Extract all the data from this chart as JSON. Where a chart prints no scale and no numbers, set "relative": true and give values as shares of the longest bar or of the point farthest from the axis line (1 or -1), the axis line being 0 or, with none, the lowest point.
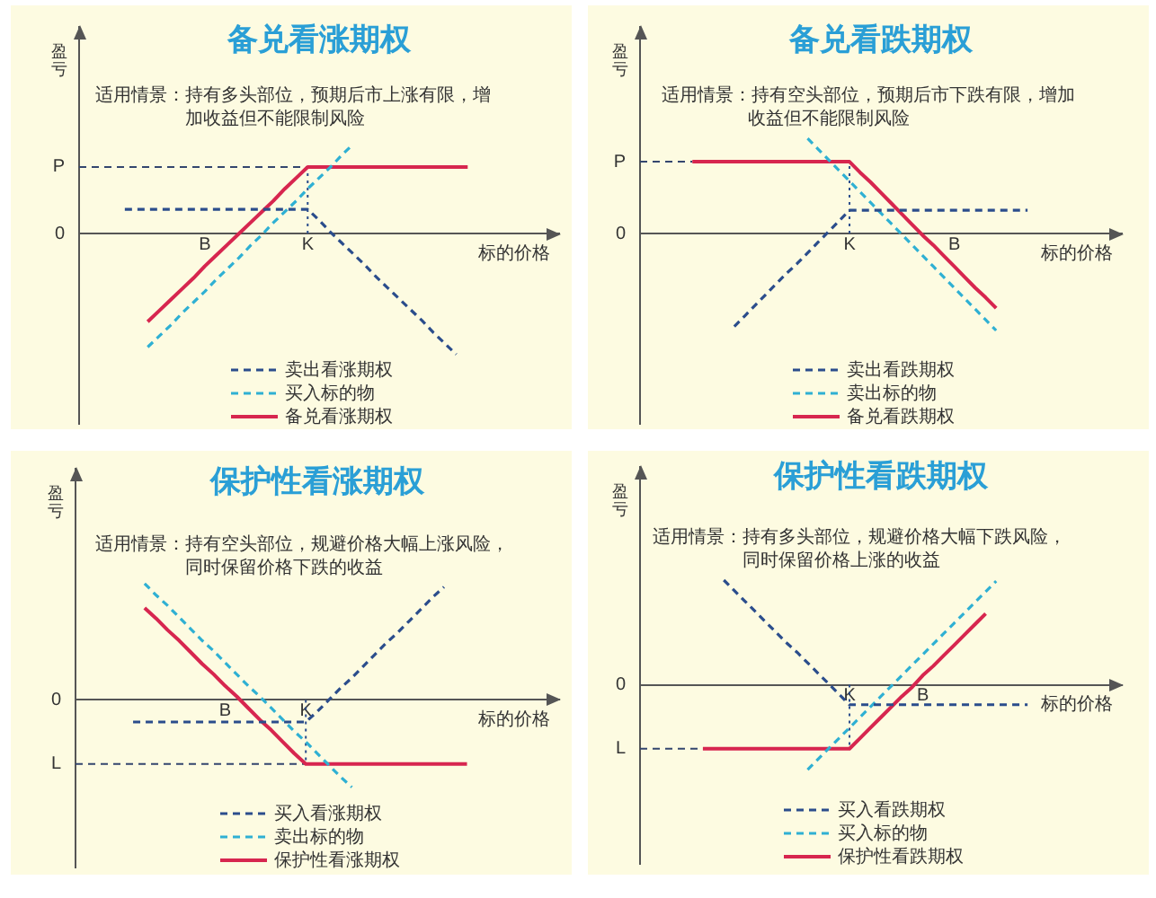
{
  "chart_data": [
    {
      "type": "line",
      "title": "备兑看涨期权",
      "subtitle": "适用情景：持有多头部位，预期后市上涨有限，增加收益但不能限制风险",
      "xlabel": "标的价格",
      "ylabel": "盈亏",
      "relative": true,
      "categories": [
        null,
        null,
        null,
        null,
        null,
        null,
        null,
        null,
        null,
        null,
        null,
        "B",
        null,
        null,
        null,
        null,
        null,
        null,
        null,
        null,
        "K",
        null,
        null,
        null,
        null,
        null,
        null,
        null,
        null,
        null,
        null,
        null,
        null,
        null,
        null,
        null,
        null,
        null,
        null,
        null,
        null,
        null,
        null
      ],
      "series": [
        {
          "name": "卖出看涨期权",
          "color": "#2b4d8c",
          "line_style": "dashed",
          "values": [
            null,
            null,
            null,
            null,
            0.2,
            0.2,
            0.2,
            0.2,
            0.2,
            0.2,
            0.2,
            0.2,
            0.2,
            0.2,
            0.2,
            0.2,
            0.2,
            0.2,
            0.2,
            0.2,
            0.2,
            0.11,
            0.01,
            -0.08,
            -0.17,
            -0.26,
            -0.36,
            -0.45,
            -0.54,
            -0.63,
            -0.72,
            -0.82,
            -0.91,
            -1,
            null,
            null,
            null,
            null,
            null,
            null,
            null,
            null,
            null
          ]
        },
        {
          "name": "买入标的物",
          "color": "#2fb0d3",
          "line_style": "dashed",
          "values": [
            null,
            null,
            null,
            null,
            null,
            null,
            -0.94,
            -0.85,
            -0.76,
            -0.66,
            -0.57,
            -0.48,
            -0.38,
            -0.29,
            -0.2,
            -0.1,
            -0.01,
            0.09,
            0.18,
            0.27,
            0.37,
            0.46,
            0.55,
            0.65,
            0.74,
            null,
            null,
            null,
            null,
            null,
            null,
            null,
            null,
            null,
            null,
            null,
            null,
            null,
            null,
            null,
            null,
            null,
            null
          ]
        },
        {
          "name": "备兑看涨期权",
          "color": "#d7264f",
          "line_style": "solid",
          "values": [
            null,
            null,
            null,
            null,
            null,
            null,
            -0.73,
            -0.64,
            -0.55,
            -0.46,
            -0.37,
            -0.27,
            -0.18,
            -0.09,
            0,
            0.09,
            0.18,
            0.27,
            0.37,
            0.46,
            0.55,
            0.55,
            0.55,
            0.55,
            0.55,
            0.55,
            0.55,
            0.55,
            0.55,
            0.55,
            0.55,
            0.55,
            0.55,
            0.55,
            0.55,
            null,
            null,
            null,
            null,
            null,
            null,
            null,
            null
          ]
        }
      ],
      "ref_lines": [
        {
          "axis": "y",
          "value": 0.55,
          "label": "P",
          "line_style": "dashed",
          "color": "#34466e"
        },
        {
          "axis": "x",
          "value": "K",
          "line_style": "dotted",
          "color": "#2b4d8c"
        }
      ],
      "annotations": [
        "0"
      ],
      "legend": "bottom",
      "marker": "none"
    },
    {
      "type": "line",
      "title": "备兑看跌期权",
      "subtitle": "适用情景：持有空头部位，预期后市下跌有限，增加收益但不能限制风险",
      "xlabel": "标的价格",
      "ylabel": "盈亏",
      "relative": true,
      "categories": [
        null,
        null,
        null,
        null,
        null,
        null,
        null,
        null,
        null,
        null,
        null,
        null,
        null,
        null,
        null,
        null,
        null,
        null,
        null,
        null,
        "K",
        null,
        null,
        null,
        null,
        null,
        null,
        null,
        null,
        null,
        "B",
        null,
        null,
        null,
        null,
        null,
        null,
        null,
        null,
        null,
        null,
        null,
        null,
        null,
        null,
        null,
        null
      ],
      "series": [
        {
          "name": "卖出看跌期权",
          "color": "#2b4d8c",
          "line_style": "dashed",
          "values": [
            null,
            null,
            null,
            null,
            null,
            null,
            null,
            null,
            null,
            -0.96,
            -0.85,
            -0.74,
            -0.63,
            -0.52,
            -0.41,
            -0.31,
            -0.2,
            -0.09,
            0.02,
            0.13,
            0.24,
            0.24,
            0.24,
            0.24,
            0.24,
            0.24,
            0.24,
            0.24,
            0.24,
            0.24,
            0.24,
            0.24,
            0.24,
            0.24,
            0.24,
            0.24,
            0.24,
            0.24,
            null,
            null,
            null,
            null,
            null,
            null,
            null,
            null,
            null
          ]
        },
        {
          "name": "卖出标的物",
          "color": "#2fb0d3",
          "line_style": "dashed",
          "values": [
            null,
            null,
            null,
            null,
            null,
            null,
            null,
            null,
            null,
            null,
            null,
            null,
            null,
            null,
            null,
            null,
            0.98,
            0.87,
            0.76,
            0.65,
            0.54,
            0.43,
            0.32,
            0.21,
            0.1,
            -0.01,
            -0.12,
            -0.23,
            -0.34,
            -0.45,
            -0.56,
            -0.67,
            -0.78,
            -0.89,
            -1,
            null,
            null,
            null,
            null,
            null,
            null,
            null,
            null,
            null,
            null,
            null,
            null
          ]
        },
        {
          "name": "备兑看跌期权",
          "color": "#d7264f",
          "line_style": "solid",
          "values": [
            null,
            null,
            null,
            null,
            null,
            0.74,
            0.74,
            0.74,
            0.74,
            0.74,
            0.74,
            0.74,
            0.74,
            0.74,
            0.74,
            0.74,
            0.74,
            0.74,
            0.74,
            0.74,
            0.74,
            0.63,
            0.53,
            0.42,
            0.31,
            0.2,
            0.09,
            -0.02,
            -0.12,
            -0.23,
            -0.34,
            -0.45,
            -0.56,
            -0.66,
            -0.77,
            null,
            null,
            null,
            null,
            null,
            null,
            null,
            null,
            null,
            null,
            null,
            null
          ]
        }
      ],
      "ref_lines": [
        {
          "axis": "y",
          "value": 0.74,
          "label": "P",
          "line_style": "dashed",
          "color": "#34466e"
        },
        {
          "axis": "x",
          "value": "K",
          "line_style": "dotted",
          "color": "#2b4d8c"
        }
      ],
      "annotations": [
        "0"
      ],
      "legend": "bottom",
      "marker": "none"
    },
    {
      "type": "line",
      "title": "保护性看涨期权",
      "subtitle": "适用情景：持有空头部位，规避价格大幅上涨风险，同时保留价格下跌的收益",
      "xlabel": "标的价格",
      "ylabel": "盈亏",
      "relative": true,
      "categories": [
        null,
        null,
        null,
        null,
        null,
        null,
        null,
        null,
        null,
        null,
        null,
        null,
        null,
        "B",
        null,
        null,
        null,
        null,
        null,
        null,
        "K",
        null,
        null,
        null,
        null,
        null,
        null,
        null,
        null,
        null,
        null,
        null,
        null,
        null,
        null,
        null,
        null,
        null,
        null,
        null,
        null,
        null,
        null
      ],
      "series": [
        {
          "name": "买入看涨期权",
          "color": "#2b4d8c",
          "line_style": "dashed",
          "values": [
            null,
            null,
            null,
            null,
            null,
            -0.19,
            -0.19,
            -0.19,
            -0.19,
            -0.19,
            -0.19,
            -0.19,
            -0.19,
            -0.19,
            -0.19,
            -0.19,
            -0.19,
            -0.19,
            -0.19,
            -0.19,
            -0.19,
            -0.1,
            0,
            0.1,
            0.19,
            0.29,
            0.39,
            0.49,
            0.58,
            0.68,
            0.78,
            0.88,
            0.97,
            null,
            null,
            null,
            null,
            null,
            null,
            null,
            null,
            null,
            null
          ]
        },
        {
          "name": "卖出标的物",
          "color": "#2fb0d3",
          "line_style": "dashed",
          "values": [
            null,
            null,
            null,
            null,
            null,
            null,
            1,
            0.9,
            0.81,
            0.71,
            0.61,
            0.51,
            0.42,
            0.32,
            0.22,
            0.12,
            0.03,
            -0.07,
            -0.17,
            -0.27,
            -0.36,
            -0.46,
            -0.56,
            -0.66,
            -0.75,
            null,
            null,
            null,
            null,
            null,
            null,
            null,
            null,
            null,
            null,
            null,
            null,
            null,
            null,
            null,
            null,
            null,
            null
          ]
        },
        {
          "name": "保护性看涨期权",
          "color": "#d7264f",
          "line_style": "solid",
          "values": [
            null,
            null,
            null,
            null,
            null,
            null,
            0.79,
            0.7,
            0.6,
            0.51,
            0.41,
            0.31,
            0.22,
            0.12,
            0.03,
            -0.07,
            -0.17,
            -0.26,
            -0.36,
            -0.46,
            -0.55,
            -0.55,
            -0.55,
            -0.55,
            -0.55,
            -0.55,
            -0.55,
            -0.55,
            -0.55,
            -0.55,
            -0.55,
            -0.55,
            -0.55,
            -0.55,
            -0.55,
            null,
            null,
            null,
            null,
            null,
            null,
            null,
            null
          ]
        }
      ],
      "ref_lines": [
        {
          "axis": "y",
          "value": -0.55,
          "label": "L",
          "line_style": "dashed",
          "color": "#34466e"
        },
        {
          "axis": "x",
          "value": "K",
          "line_style": "dotted",
          "color": "#2b4d8c"
        }
      ],
      "annotations": [
        "0"
      ],
      "legend": "bottom",
      "marker": "none"
    },
    {
      "type": "line",
      "title": "保护性看跌期权",
      "subtitle": "适用情景：持有多头部位，规避价格大幅下跌风险，同时保留价格上涨的收益",
      "xlabel": "标的价格",
      "ylabel": "盈亏",
      "relative": true,
      "categories": [
        null,
        null,
        null,
        null,
        null,
        null,
        null,
        null,
        null,
        null,
        null,
        null,
        null,
        null,
        null,
        null,
        null,
        null,
        null,
        null,
        "K",
        null,
        null,
        null,
        null,
        null,
        null,
        "B",
        null,
        null,
        null,
        null,
        null,
        null,
        null,
        null,
        null,
        null,
        null,
        null,
        null,
        null,
        null,
        null,
        null,
        null,
        null
      ],
      "series": [
        {
          "name": "买入看跌期权",
          "color": "#2b4d8c",
          "line_style": "dashed",
          "values": [
            null,
            null,
            null,
            null,
            null,
            null,
            null,
            null,
            1,
            0.9,
            0.8,
            0.7,
            0.6,
            0.5,
            0.4,
            0.31,
            0.21,
            0.11,
            0.01,
            -0.09,
            -0.19,
            -0.19,
            -0.19,
            -0.19,
            -0.19,
            -0.19,
            -0.19,
            -0.19,
            -0.19,
            -0.19,
            -0.19,
            -0.19,
            -0.19,
            -0.19,
            -0.19,
            -0.19,
            -0.19,
            -0.19,
            null,
            null,
            null,
            null,
            null,
            null,
            null,
            null,
            null
          ]
        },
        {
          "name": "买入标的物",
          "color": "#2fb0d3",
          "line_style": "dashed",
          "values": [
            null,
            null,
            null,
            null,
            null,
            null,
            null,
            null,
            null,
            null,
            null,
            null,
            null,
            null,
            null,
            null,
            -0.81,
            -0.71,
            -0.61,
            -0.51,
            -0.41,
            -0.31,
            -0.21,
            -0.11,
            -0.01,
            0.09,
            0.19,
            0.29,
            0.39,
            0.49,
            0.59,
            0.69,
            0.79,
            0.89,
            0.99,
            null,
            null,
            null,
            null,
            null,
            null,
            null,
            null,
            null,
            null,
            null,
            null
          ]
        },
        {
          "name": "保护性看跌期权",
          "color": "#d7264f",
          "line_style": "solid",
          "values": [
            null,
            null,
            null,
            null,
            null,
            null,
            -0.61,
            -0.61,
            -0.61,
            -0.61,
            -0.61,
            -0.61,
            -0.61,
            -0.61,
            -0.61,
            -0.61,
            -0.61,
            -0.61,
            -0.61,
            -0.61,
            -0.61,
            -0.51,
            -0.41,
            -0.31,
            -0.21,
            -0.11,
            -0.02,
            0.09,
            0.18,
            0.28,
            0.38,
            0.48,
            0.58,
            0.68,
            null,
            null,
            null,
            null,
            null,
            null,
            null,
            null,
            null,
            null,
            null,
            null,
            null
          ]
        }
      ],
      "ref_lines": [
        {
          "axis": "y",
          "value": -0.61,
          "label": "L",
          "line_style": "dashed",
          "color": "#34466e"
        },
        {
          "axis": "x",
          "value": "K",
          "line_style": "dotted",
          "color": "#2b4d8c"
        }
      ],
      "annotations": [
        "0"
      ],
      "legend": "bottom",
      "marker": "none"
    }
  ]
}
